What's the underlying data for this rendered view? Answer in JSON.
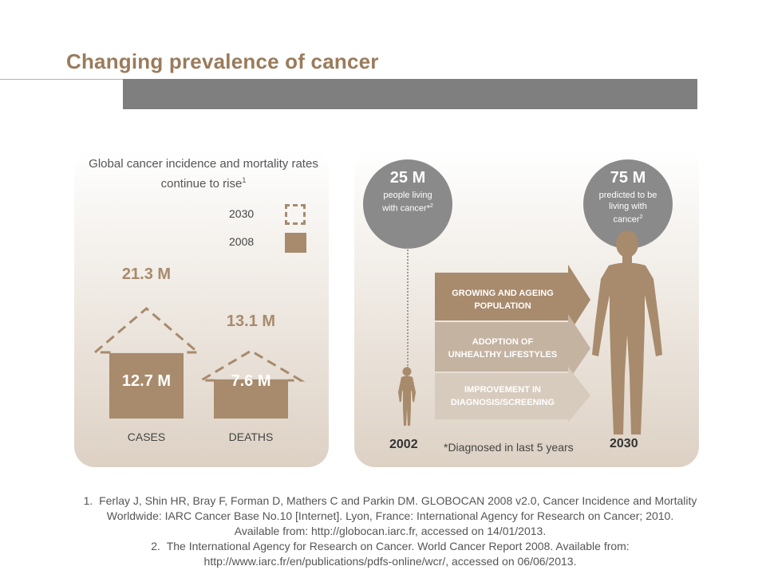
{
  "slide": {
    "title": "Changing prevalence of cancer"
  },
  "left_panel": {
    "heading": "Global cancer incidence and mortality rates continue to rise",
    "heading_ref": "1",
    "legend": [
      {
        "label": "2030",
        "style": "dashed-outline"
      },
      {
        "label": "2008",
        "style": "filled"
      }
    ]
  },
  "chart_data": {
    "type": "bar",
    "title": "Global cancer incidence and mortality rates continue to rise",
    "categories": [
      "CASES",
      "DEATHS"
    ],
    "series": [
      {
        "name": "2008",
        "values": [
          12.7,
          7.6
        ],
        "labels": [
          "12.7 M",
          "7.6 M"
        ],
        "color": "#a88a6c"
      },
      {
        "name": "2030",
        "values": [
          21.3,
          13.1
        ],
        "labels": [
          "21.3 M",
          "13.1 M"
        ],
        "color": "#a88a6c",
        "style": "dashed"
      }
    ],
    "ylim": [
      0,
      21.3
    ]
  },
  "right_panel": {
    "circle_2002": {
      "value": "25 M",
      "caption": "people living with cancer*",
      "ref": "2"
    },
    "circle_2030": {
      "value": "75 M",
      "caption": "predicted to be living with cancer",
      "ref": "2"
    },
    "factors": [
      {
        "label": "GROWING AND AGEING POPULATION",
        "color": "#a88a6c"
      },
      {
        "label": "ADOPTION OF UNHEALTHY LIFESTYLES",
        "color": "#c4b3a1"
      },
      {
        "label": "IMPROVEMENT IN DIAGNOSIS/SCREENING",
        "color": "#d7cbbe"
      }
    ],
    "year_start": "2002",
    "year_end": "2030",
    "footnote": "*Diagnosed in last 5 years"
  },
  "references": [
    "1.  Ferlay J, Shin HR, Bray F, Forman D, Mathers C and Parkin DM. GLOBOCAN 2008 v2.0, Cancer Incidence and Mortality Worldwide: IARC Cancer Base No.10 [Internet]. Lyon, France: International Agency for Research on Cancer; 2010. Available from: http://globocan.iarc.fr, accessed on 14/01/2013.",
    "2.  The International Agency for Research on Cancer. World Cancer Report 2008. Available from: http://www.iarc.fr/en/publications/pdfs-online/wcr/, accessed on 06/06/2013."
  ],
  "colors": {
    "accent": "#a88a6c",
    "title": "#9a7b5b",
    "bar_gray": "#7f7f7f",
    "circle_gray": "#8a8a8a"
  }
}
